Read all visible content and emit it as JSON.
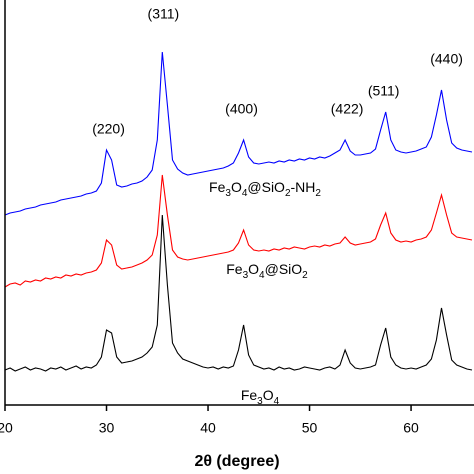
{
  "chart_data": {
    "type": "line",
    "x_label": "2θ (degree)",
    "xlim": [
      20,
      66.2
    ],
    "ylim": [
      0,
      405
    ],
    "xticks": [
      20,
      30,
      40,
      50,
      60
    ],
    "x": [
      20,
      20.5,
      21,
      21.5,
      22,
      22.5,
      23,
      23.5,
      24,
      24.5,
      25,
      25.5,
      26,
      26.5,
      27,
      27.5,
      28,
      28.5,
      29,
      29.5,
      30,
      30.5,
      31,
      31.5,
      32,
      32.5,
      33,
      33.5,
      34,
      34.5,
      35,
      35.5,
      36,
      36.5,
      37,
      37.5,
      38,
      38.5,
      39,
      39.5,
      40,
      40.5,
      41,
      41.5,
      42,
      42.5,
      43,
      43.5,
      44,
      44.5,
      45,
      45.5,
      46,
      46.5,
      47,
      47.5,
      48,
      48.5,
      49,
      49.5,
      50,
      50.5,
      51,
      51.5,
      52,
      52.5,
      53,
      53.5,
      54,
      54.5,
      55,
      55.5,
      56,
      56.5,
      57,
      57.5,
      58,
      58.5,
      59,
      59.5,
      60,
      60.5,
      61,
      61.5,
      62,
      62.5,
      63,
      63.5,
      64,
      64.5,
      65,
      65.5,
      66
    ],
    "series": [
      {
        "name": "Fe3O4@SiO2-NH2",
        "color": "#0000ff",
        "values": [
          190,
          192,
          193,
          194,
          196,
          197,
          198,
          200,
          201,
          202,
          203,
          205,
          206,
          207,
          208,
          209,
          211,
          212,
          214,
          222,
          255,
          245,
          220,
          218,
          219,
          221,
          222,
          224,
          228,
          235,
          265,
          353,
          300,
          245,
          236,
          232,
          230,
          231,
          232,
          233,
          234,
          235,
          236,
          237,
          239,
          242,
          252,
          265,
          248,
          242,
          241,
          242,
          243,
          242,
          244,
          243,
          245,
          244,
          246,
          245,
          247,
          246,
          248,
          247,
          249,
          252,
          255,
          265,
          254,
          250,
          250,
          251,
          252,
          256,
          275,
          293,
          265,
          255,
          253,
          252,
          253,
          254,
          256,
          258,
          268,
          290,
          315,
          285,
          262,
          257,
          255,
          254,
          253
        ]
      },
      {
        "name": "Fe3O4@SiO2",
        "color": "#ff0000",
        "values": [
          118,
          121,
          122,
          120,
          124,
          123,
          125,
          124,
          127,
          126,
          128,
          127,
          130,
          129,
          131,
          130,
          132,
          133,
          135,
          142,
          165,
          160,
          140,
          136,
          137,
          138,
          140,
          142,
          145,
          150,
          170,
          230,
          190,
          155,
          148,
          146,
          145,
          146,
          147,
          148,
          149,
          150,
          151,
          152,
          153,
          155,
          162,
          175,
          160,
          155,
          154,
          155,
          154,
          156,
          155,
          157,
          156,
          158,
          157,
          156,
          158,
          159,
          158,
          160,
          159,
          161,
          162,
          168,
          162,
          160,
          161,
          162,
          163,
          166,
          180,
          192,
          172,
          165,
          163,
          164,
          163,
          165,
          166,
          168,
          175,
          192,
          210,
          190,
          172,
          168,
          167,
          166,
          165
        ]
      },
      {
        "name": "Fe3O4",
        "color": "#000000",
        "values": [
          35,
          37,
          34,
          36,
          38,
          35,
          37,
          36,
          34,
          37,
          36,
          38,
          35,
          37,
          39,
          36,
          38,
          37,
          40,
          48,
          75,
          72,
          48,
          42,
          43,
          44,
          46,
          48,
          52,
          58,
          80,
          190,
          120,
          62,
          52,
          46,
          44,
          42,
          40,
          38,
          37,
          38,
          36,
          38,
          37,
          39,
          55,
          80,
          50,
          40,
          38,
          36,
          37,
          35,
          38,
          36,
          37,
          35,
          36,
          38,
          37,
          36,
          35,
          37,
          38,
          36,
          40,
          55,
          42,
          37,
          36,
          37,
          38,
          40,
          60,
          77,
          48,
          40,
          37,
          36,
          37,
          36,
          38,
          40,
          46,
          65,
          97,
          70,
          45,
          40,
          38,
          36,
          35
        ]
      }
    ],
    "annotations": [
      {
        "text": "(220)",
        "x": 30.2,
        "y": 275
      },
      {
        "text": "(311)",
        "x": 35.6,
        "y": 390
      },
      {
        "text": "(400)",
        "x": 43.3,
        "y": 295
      },
      {
        "text": "(422)",
        "x": 53.7,
        "y": 295
      },
      {
        "text": "(511)",
        "x": 57.3,
        "y": 313
      },
      {
        "text": "(440)",
        "x": 63.5,
        "y": 345
      }
    ]
  }
}
